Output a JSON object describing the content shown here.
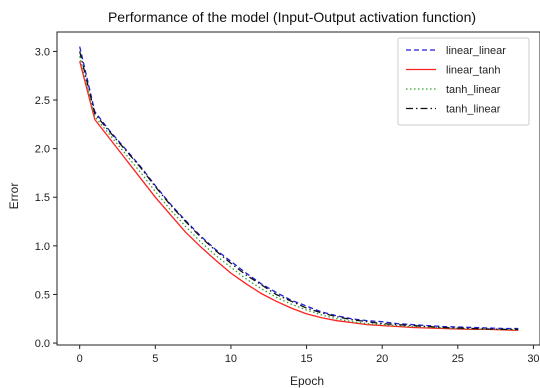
{
  "chart_data": {
    "type": "line",
    "title": "Performance of the model (Input-Output activation function)",
    "xlabel": "Epoch",
    "ylabel": "Error",
    "xlim": [
      -1.5,
      30.5
    ],
    "ylim": [
      -0.02,
      3.2
    ],
    "xticks": [
      0,
      5,
      10,
      15,
      20,
      25,
      30
    ],
    "yticks": [
      0.0,
      0.5,
      1.0,
      1.5,
      2.0,
      2.5,
      3.0
    ],
    "xtick_labels": [
      "0",
      "5",
      "10",
      "15",
      "20",
      "25",
      "30"
    ],
    "ytick_labels": [
      "0.0",
      "0.5",
      "1.0",
      "1.5",
      "2.0",
      "2.5",
      "3.0"
    ],
    "grid": false,
    "legend_position": "top-right",
    "x": [
      0,
      1,
      2,
      3,
      4,
      5,
      6,
      7,
      8,
      9,
      10,
      11,
      12,
      13,
      14,
      15,
      16,
      17,
      18,
      19,
      20,
      21,
      22,
      23,
      24,
      25,
      26,
      27,
      28,
      29
    ],
    "series": [
      {
        "name": "linear_linear",
        "color": "#1f1fd6",
        "dash": "dashed",
        "values": [
          3.05,
          2.38,
          2.18,
          2.0,
          1.82,
          1.62,
          1.43,
          1.26,
          1.1,
          0.96,
          0.84,
          0.72,
          0.61,
          0.52,
          0.44,
          0.38,
          0.32,
          0.28,
          0.25,
          0.23,
          0.22,
          0.2,
          0.19,
          0.18,
          0.17,
          0.165,
          0.16,
          0.155,
          0.15,
          0.15
        ]
      },
      {
        "name": "linear_tanh",
        "color": "#ff2020",
        "dash": "solid",
        "values": [
          2.9,
          2.3,
          2.1,
          1.9,
          1.7,
          1.5,
          1.32,
          1.14,
          0.99,
          0.85,
          0.72,
          0.61,
          0.51,
          0.43,
          0.36,
          0.3,
          0.26,
          0.23,
          0.21,
          0.19,
          0.18,
          0.17,
          0.16,
          0.155,
          0.15,
          0.145,
          0.14,
          0.14,
          0.135,
          0.13
        ]
      },
      {
        "name": "tanh_linear",
        "color": "#2ca02c",
        "dash": "dotted",
        "values": [
          2.95,
          2.33,
          2.14,
          1.95,
          1.76,
          1.56,
          1.37,
          1.2,
          1.04,
          0.9,
          0.78,
          0.66,
          0.56,
          0.47,
          0.4,
          0.34,
          0.29,
          0.25,
          0.22,
          0.2,
          0.19,
          0.18,
          0.17,
          0.165,
          0.155,
          0.15,
          0.145,
          0.14,
          0.14,
          0.135
        ]
      },
      {
        "name": "tanh_linear",
        "color": "#111111",
        "dash": "dashdot",
        "values": [
          3.0,
          2.36,
          2.17,
          1.99,
          1.81,
          1.61,
          1.42,
          1.25,
          1.09,
          0.95,
          0.82,
          0.7,
          0.6,
          0.5,
          0.43,
          0.36,
          0.31,
          0.27,
          0.24,
          0.22,
          0.2,
          0.19,
          0.18,
          0.17,
          0.16,
          0.155,
          0.15,
          0.145,
          0.14,
          0.14
        ]
      }
    ]
  }
}
